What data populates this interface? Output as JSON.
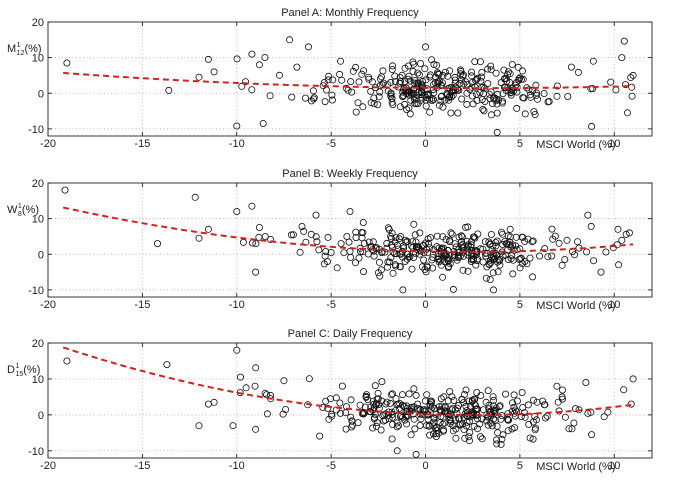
{
  "colors": {
    "points": "#111111",
    "fit": "#d0231d",
    "grid": "#b8b8b8"
  },
  "chart_data": [
    {
      "type": "scatter",
      "title": "Panel A: Monthly Frequency",
      "ylabel": {
        "base": "M",
        "sup": "1",
        "sub": "12",
        "unit": " (%)"
      },
      "xlabel": "MSCI World (%)",
      "xlim": [
        -20,
        12
      ],
      "ylim": [
        -12,
        20
      ],
      "xticks": [
        -20,
        -15,
        -10,
        -5,
        0,
        5,
        10
      ],
      "yticks": [
        -10,
        0,
        10,
        20
      ],
      "fit_coeffs": [
        1.5,
        -0.05,
        0.0088
      ],
      "n_points": 330,
      "noise_sd": 3.4,
      "seed": 11,
      "extra_points": [
        [
          -19,
          8.5
        ],
        [
          -13.6,
          0.8
        ],
        [
          -10,
          -9.2
        ],
        [
          -8.6,
          -8.5
        ],
        [
          -7.2,
          15
        ],
        [
          -9.2,
          11
        ],
        [
          -8.8,
          8
        ],
        [
          -6.2,
          13
        ],
        [
          -4.5,
          9
        ],
        [
          3.8,
          -11
        ],
        [
          8.8,
          -9.3
        ],
        [
          10.7,
          -5.5
        ],
        [
          10.4,
          10
        ],
        [
          11,
          5
        ],
        [
          0,
          13
        ],
        [
          -12,
          4.5
        ],
        [
          -11.5,
          9.5
        ],
        [
          -11.2,
          6
        ]
      ]
    },
    {
      "type": "scatter",
      "title": "Panel B: Weekly Frequency",
      "ylabel": {
        "base": "W",
        "sup": "1",
        "sub": "8",
        "unit": " (%)"
      },
      "xlabel": "MSCI World (%)",
      "xlim": [
        -20,
        12
      ],
      "ylim": [
        -12,
        20
      ],
      "xticks": [
        -20,
        -15,
        -10,
        -5,
        0,
        5,
        10
      ],
      "yticks": [
        -10,
        0,
        10,
        20
      ],
      "fit_coeffs": [
        0.8,
        -0.12,
        0.0272
      ],
      "n_points": 340,
      "noise_sd": 2.9,
      "seed": 23,
      "extra_points": [
        [
          -19.1,
          18
        ],
        [
          -12.2,
          16
        ],
        [
          -14.2,
          3
        ],
        [
          -12,
          4.5
        ],
        [
          -11.5,
          7
        ],
        [
          -10,
          12
        ],
        [
          -9.2,
          13.5
        ],
        [
          -8.8,
          7.5
        ],
        [
          -7,
          5.5
        ],
        [
          -5.8,
          11
        ],
        [
          -4,
          12
        ],
        [
          3.6,
          -10
        ],
        [
          -1.2,
          -10
        ],
        [
          8.6,
          11
        ],
        [
          9.3,
          -5
        ],
        [
          10.2,
          7
        ],
        [
          10.8,
          6
        ],
        [
          -9,
          -5
        ]
      ]
    },
    {
      "type": "scatter",
      "title": "Panel C: Daily Frequency",
      "ylabel": {
        "base": "D",
        "sup": "1",
        "sub": "15",
        "unit": " (%)"
      },
      "xlabel": "MSCI World (%)",
      "xlim": [
        -20,
        12
      ],
      "ylim": [
        -12,
        20
      ],
      "xticks": [
        -20,
        -15,
        -10,
        -5,
        0,
        5,
        10
      ],
      "yticks": [
        -10,
        0,
        10,
        20
      ],
      "fit_coeffs": [
        0.2,
        -0.2,
        0.04
      ],
      "n_points": 350,
      "noise_sd": 3.4,
      "seed": 37,
      "extra_points": [
        [
          -19,
          15
        ],
        [
          -13.7,
          14
        ],
        [
          -10,
          18
        ],
        [
          -11.5,
          3
        ],
        [
          -11.2,
          3.5
        ],
        [
          -12,
          -3
        ],
        [
          -9.8,
          10.5
        ],
        [
          -8.5,
          6
        ],
        [
          -8.2,
          4.5
        ],
        [
          -7.5,
          9.5
        ],
        [
          -9,
          -4
        ],
        [
          -1.5,
          -10
        ],
        [
          -0.5,
          -11
        ],
        [
          8.8,
          -5.5
        ],
        [
          10.5,
          7
        ],
        [
          10.9,
          3
        ],
        [
          11,
          10
        ],
        [
          8.5,
          9
        ],
        [
          -10.2,
          -3
        ],
        [
          -4.4,
          8
        ]
      ]
    }
  ]
}
